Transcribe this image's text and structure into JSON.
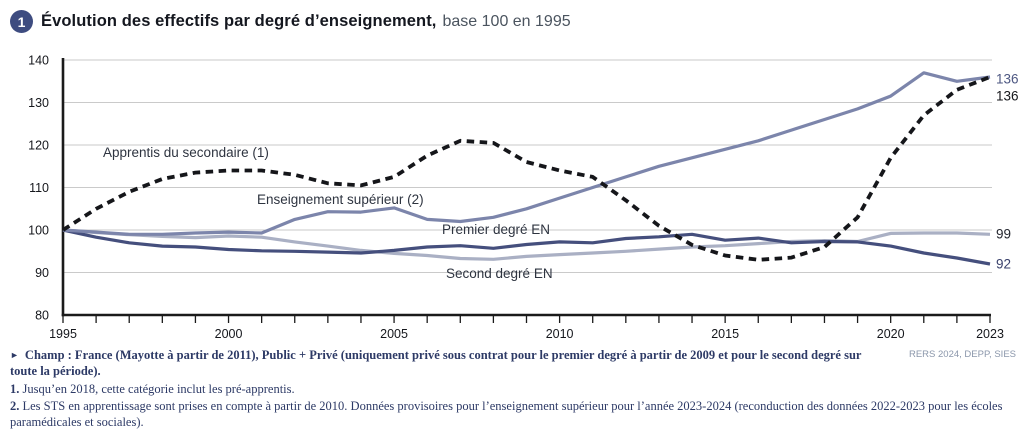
{
  "header": {
    "badge": "1",
    "title": "Évolution des effectifs par degré d’enseignement,",
    "subtitle": "base 100 en 1995"
  },
  "chart_data": {
    "type": "line",
    "title": "Évolution des effectifs par degré d’enseignement, base 100 en 1995",
    "x": [
      1995,
      1996,
      1997,
      1998,
      1999,
      2000,
      2001,
      2002,
      2003,
      2004,
      2005,
      2006,
      2007,
      2008,
      2009,
      2010,
      2011,
      2012,
      2013,
      2014,
      2015,
      2016,
      2017,
      2018,
      2019,
      2020,
      2021,
      2022,
      2023
    ],
    "x_tick_labels": [
      "1995",
      "2000",
      "2005",
      "2010",
      "2015",
      "2020",
      "2023"
    ],
    "x_tick_years": [
      1995,
      2000,
      2005,
      2010,
      2015,
      2020,
      2023
    ],
    "ylim": [
      80,
      140
    ],
    "y_ticks": [
      80,
      90,
      100,
      110,
      120,
      130,
      140
    ],
    "grid": "horizontal",
    "legend_position": "inline-labels",
    "axis_color": "#1a1a1a",
    "grid_color": "#cacaca",
    "series": [
      {
        "name": "Apprentis du secondaire (1)",
        "style": "dashed",
        "color": "#15161a",
        "end_label": "136",
        "end_label_color": "#15161a",
        "values": [
          100,
          105,
          109,
          112,
          113.5,
          114,
          114,
          113,
          111,
          110.5,
          112.5,
          117.5,
          121,
          120.5,
          116,
          114,
          112.5,
          107,
          101,
          96.5,
          94,
          93,
          93.5,
          96,
          103,
          117,
          127,
          133,
          136
        ]
      },
      {
        "name": "Enseignement supérieur (2)",
        "style": "solid",
        "color": "#7c85ab",
        "end_label": "136",
        "end_label_color": "#4d5782",
        "values": [
          100,
          99.5,
          99,
          99,
          99.3,
          99.5,
          99.3,
          102.5,
          104.3,
          104.2,
          105.2,
          102.5,
          102,
          103,
          105,
          107.5,
          110,
          112.5,
          115,
          117,
          119,
          121,
          123.5,
          126,
          128.5,
          131.5,
          137,
          135,
          136
        ]
      },
      {
        "name": "Premier degré EN",
        "style": "solid",
        "color": "#454f7d",
        "end_label": "92",
        "end_label_color": "#39406b",
        "values": [
          100,
          98.3,
          97,
          96.2,
          96,
          95.4,
          95.1,
          95,
          94.8,
          94.6,
          95.2,
          96,
          96.3,
          95.7,
          96.6,
          97.2,
          97,
          98,
          98.4,
          99,
          97.6,
          98.1,
          97,
          97.3,
          97.2,
          96.2,
          94.6,
          93.4,
          92
        ]
      },
      {
        "name": "Second degré EN",
        "style": "solid",
        "color": "#aab0c4",
        "end_label": "99",
        "end_label_color": "#23262e",
        "values": [
          100,
          99.4,
          98.9,
          98.5,
          98.2,
          98.6,
          98.3,
          97.2,
          96.2,
          95.2,
          94.5,
          94,
          93.3,
          93.1,
          93.8,
          94.2,
          94.6,
          95,
          95.5,
          96,
          96.3,
          96.8,
          97.3,
          97.5,
          97.3,
          99.2,
          99.3,
          99.3,
          99
        ]
      }
    ]
  },
  "footer": {
    "marker": "►",
    "champ": "Champ : France (Mayotte à partir de 2011), Public + Privé (uniquement privé sous contrat pour le premier degré à partir de 2009 et pour le second degré sur toute la période).",
    "source": "RERS 2024, DEPP, SIES",
    "notes": [
      {
        "num": "1.",
        "text": "Jusqu’en 2018, cette catégorie inclut les pré-apprentis."
      },
      {
        "num": "2.",
        "text": "Les STS en apprentissage sont prises en compte à partir de 2010. Données provisoires pour l’enseignement supérieur pour l’année 2023-2024 (reconduction des données 2022-2023 pour les écoles paramédicales et sociales)."
      }
    ]
  }
}
